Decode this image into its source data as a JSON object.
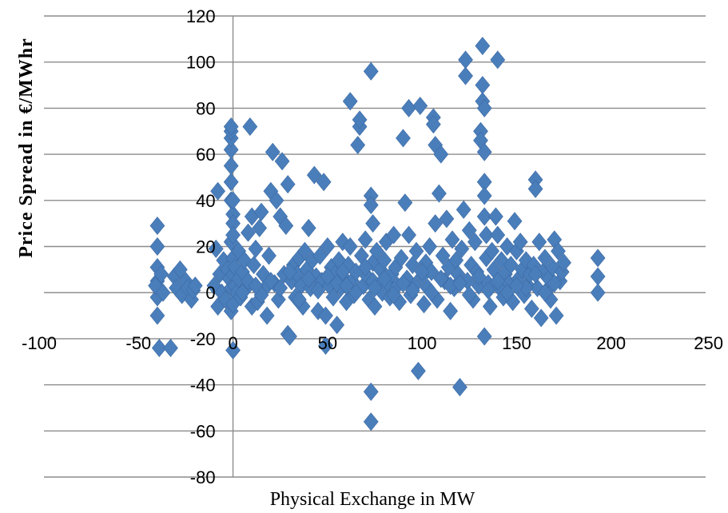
{
  "chart_data": {
    "type": "scatter",
    "title": "",
    "xlabel": "Physical Exchange in MW",
    "ylabel": "Price Spread in €/MWhr",
    "xlim": [
      -100,
      250
    ],
    "ylim": [
      -80,
      120
    ],
    "x_ticks": [
      -100,
      -50,
      0,
      50,
      100,
      150,
      200,
      250
    ],
    "y_ticks": [
      -80,
      -60,
      -40,
      -20,
      0,
      20,
      40,
      60,
      80,
      100,
      120
    ],
    "grid": "horizontal",
    "legend": "none",
    "marker_color": "#4a7ebb",
    "marker": "diamond",
    "series": [
      {
        "points": [
          [
            -40,
            29
          ],
          [
            -40,
            20
          ],
          [
            -40,
            11
          ],
          [
            -40,
            5
          ],
          [
            -40,
            -2
          ],
          [
            -40,
            -10
          ],
          [
            -39,
            -24
          ],
          [
            -41,
            3
          ],
          [
            -38,
            8
          ],
          [
            -37,
            0
          ],
          [
            -33,
            -24
          ],
          [
            -31,
            7
          ],
          [
            -30,
            2
          ],
          [
            -28,
            10
          ],
          [
            -27,
            -1
          ],
          [
            -25,
            5
          ],
          [
            -24,
            2
          ],
          [
            -22,
            -3
          ],
          [
            -21,
            1
          ],
          [
            -20,
            3
          ],
          [
            -10,
            3
          ],
          [
            -9,
            19
          ],
          [
            -8,
            44
          ],
          [
            -8,
            -6
          ],
          [
            -7,
            8
          ],
          [
            -6,
            0
          ],
          [
            -5,
            14
          ],
          [
            -4,
            -3
          ],
          [
            -3,
            10
          ],
          [
            -2,
            6
          ],
          [
            -1,
            -8
          ],
          [
            -1,
            2
          ],
          [
            -1,
            22
          ],
          [
            -1,
            40
          ],
          [
            -1,
            48
          ],
          [
            -1,
            55
          ],
          [
            -1,
            62
          ],
          [
            -1,
            67
          ],
          [
            -1,
            70
          ],
          [
            -1,
            72
          ],
          [
            0,
            -25
          ],
          [
            0,
            34
          ],
          [
            0,
            40
          ],
          [
            0,
            30
          ],
          [
            0,
            25
          ],
          [
            0,
            15
          ],
          [
            0,
            8
          ],
          [
            0,
            -5
          ],
          [
            1,
            3
          ],
          [
            1,
            11
          ],
          [
            2,
            0
          ],
          [
            3,
            18
          ],
          [
            3,
            6
          ],
          [
            4,
            -2
          ],
          [
            5,
            9
          ],
          [
            6,
            14
          ],
          [
            7,
            2
          ],
          [
            8,
            26
          ],
          [
            8,
            5
          ],
          [
            9,
            72
          ],
          [
            10,
            -6
          ],
          [
            10,
            33
          ],
          [
            11,
            12
          ],
          [
            12,
            19
          ],
          [
            13,
            -4
          ],
          [
            14,
            28
          ],
          [
            15,
            35
          ],
          [
            16,
            8
          ],
          [
            17,
            2
          ],
          [
            18,
            -10
          ],
          [
            19,
            16
          ],
          [
            20,
            44
          ],
          [
            21,
            61
          ],
          [
            22,
            4
          ],
          [
            23,
            40
          ],
          [
            24,
            -3
          ],
          [
            25,
            33
          ],
          [
            26,
            57
          ],
          [
            27,
            8
          ],
          [
            28,
            29
          ],
          [
            29,
            47
          ],
          [
            29,
            -18
          ],
          [
            30,
            -19
          ],
          [
            31,
            5
          ],
          [
            32,
            12
          ],
          [
            33,
            -2
          ],
          [
            34,
            8
          ],
          [
            35,
            15
          ],
          [
            36,
            3
          ],
          [
            37,
            -6
          ],
          [
            38,
            18
          ],
          [
            39,
            10
          ],
          [
            40,
            28
          ],
          [
            41,
            2
          ],
          [
            42,
            14
          ],
          [
            43,
            51
          ],
          [
            44,
            7
          ],
          [
            45,
            -8
          ],
          [
            46,
            16
          ],
          [
            47,
            5
          ],
          [
            48,
            48
          ],
          [
            49,
            -10
          ],
          [
            49,
            -23
          ],
          [
            50,
            20
          ],
          [
            51,
            3
          ],
          [
            52,
            11
          ],
          [
            53,
            -2
          ],
          [
            54,
            8
          ],
          [
            55,
            -14
          ],
          [
            56,
            14
          ],
          [
            57,
            2
          ],
          [
            58,
            22
          ],
          [
            59,
            6
          ],
          [
            60,
            -4
          ],
          [
            61,
            12
          ],
          [
            62,
            83
          ],
          [
            62,
            20
          ],
          [
            63,
            5
          ],
          [
            64,
            -1
          ],
          [
            65,
            9
          ],
          [
            66,
            64
          ],
          [
            67,
            72
          ],
          [
            67,
            75
          ],
          [
            68,
            16
          ],
          [
            69,
            3
          ],
          [
            70,
            23
          ],
          [
            71,
            7
          ],
          [
            72,
            -3
          ],
          [
            73,
            96
          ],
          [
            73,
            42
          ],
          [
            73,
            -43
          ],
          [
            73,
            -56
          ],
          [
            73,
            38
          ],
          [
            74,
            30
          ],
          [
            74,
            13
          ],
          [
            74,
            5
          ],
          [
            75,
            -6
          ],
          [
            76,
            18
          ],
          [
            77,
            2
          ],
          [
            78,
            10
          ],
          [
            79,
            0
          ],
          [
            80,
            14
          ],
          [
            81,
            22
          ],
          [
            82,
            4
          ],
          [
            83,
            -2
          ],
          [
            84,
            8
          ],
          [
            85,
            25
          ],
          [
            86,
            11
          ],
          [
            87,
            3
          ],
          [
            88,
            -4
          ],
          [
            89,
            15
          ],
          [
            90,
            67
          ],
          [
            91,
            39
          ],
          [
            92,
            6
          ],
          [
            93,
            25
          ],
          [
            93,
            80
          ],
          [
            94,
            -1
          ],
          [
            95,
            12
          ],
          [
            96,
            3
          ],
          [
            97,
            18
          ],
          [
            98,
            -34
          ],
          [
            99,
            81
          ],
          [
            100,
            7
          ],
          [
            101,
            -5
          ],
          [
            102,
            13
          ],
          [
            103,
            2
          ],
          [
            104,
            20
          ],
          [
            105,
            9
          ],
          [
            106,
            76
          ],
          [
            106,
            73
          ],
          [
            107,
            64
          ],
          [
            107,
            30
          ],
          [
            108,
            -3
          ],
          [
            109,
            43
          ],
          [
            110,
            60
          ],
          [
            111,
            16
          ],
          [
            112,
            5
          ],
          [
            113,
            32
          ],
          [
            114,
            11
          ],
          [
            115,
            -8
          ],
          [
            116,
            23
          ],
          [
            117,
            2
          ],
          [
            118,
            14
          ],
          [
            119,
            8
          ],
          [
            120,
            -41
          ],
          [
            121,
            19
          ],
          [
            122,
            36
          ],
          [
            123,
            101
          ],
          [
            123,
            94
          ],
          [
            124,
            5
          ],
          [
            125,
            27
          ],
          [
            126,
            12
          ],
          [
            127,
            -3
          ],
          [
            128,
            22
          ],
          [
            129,
            9
          ],
          [
            130,
            3
          ],
          [
            131,
            70
          ],
          [
            131,
            66
          ],
          [
            132,
            107
          ],
          [
            132,
            83
          ],
          [
            132,
            90
          ],
          [
            133,
            80
          ],
          [
            133,
            61
          ],
          [
            133,
            48
          ],
          [
            133,
            42
          ],
          [
            133,
            33
          ],
          [
            133,
            -19
          ],
          [
            134,
            25
          ],
          [
            134,
            15
          ],
          [
            135,
            4
          ],
          [
            136,
            -6
          ],
          [
            137,
            18
          ],
          [
            138,
            10
          ],
          [
            139,
            33
          ],
          [
            140,
            101
          ],
          [
            140,
            25
          ],
          [
            141,
            2
          ],
          [
            142,
            14
          ],
          [
            143,
            -2
          ],
          [
            144,
            8
          ],
          [
            145,
            20
          ],
          [
            146,
            4
          ],
          [
            147,
            12
          ],
          [
            148,
            -4
          ],
          [
            149,
            31
          ],
          [
            150,
            18
          ],
          [
            151,
            6
          ],
          [
            152,
            22
          ],
          [
            153,
            10
          ],
          [
            154,
            -1
          ],
          [
            155,
            14
          ],
          [
            156,
            3
          ],
          [
            157,
            8
          ],
          [
            158,
            -7
          ],
          [
            159,
            12
          ],
          [
            160,
            49
          ],
          [
            160,
            45
          ],
          [
            161,
            2
          ],
          [
            162,
            22
          ],
          [
            163,
            -11
          ],
          [
            164,
            9
          ],
          [
            165,
            15
          ],
          [
            166,
            1
          ],
          [
            167,
            6
          ],
          [
            168,
            -3
          ],
          [
            169,
            11
          ],
          [
            170,
            23
          ],
          [
            171,
            -10
          ],
          [
            172,
            18
          ],
          [
            173,
            5
          ],
          [
            174,
            9
          ],
          [
            175,
            13
          ],
          [
            193,
            15
          ],
          [
            193,
            7
          ],
          [
            193,
            0
          ],
          [
            5,
            0
          ],
          [
            15,
            -1
          ],
          [
            25,
            2
          ],
          [
            35,
            -3
          ],
          [
            45,
            1
          ],
          [
            55,
            4
          ],
          [
            65,
            0
          ],
          [
            75,
            2
          ],
          [
            85,
            -1
          ],
          [
            95,
            1
          ],
          [
            105,
            0
          ],
          [
            115,
            3
          ],
          [
            125,
            -1
          ],
          [
            135,
            1
          ],
          [
            145,
            0
          ],
          [
            155,
            2
          ],
          [
            165,
            0
          ],
          [
            20,
            5
          ],
          [
            30,
            9
          ],
          [
            40,
            6
          ],
          [
            50,
            7
          ],
          [
            60,
            3
          ],
          [
            70,
            11
          ],
          [
            80,
            6
          ],
          [
            90,
            4
          ],
          [
            100,
            9
          ],
          [
            110,
            6
          ],
          [
            120,
            4
          ],
          [
            130,
            7
          ],
          [
            140,
            5
          ],
          [
            150,
            3
          ],
          [
            160,
            8
          ],
          [
            170,
            4
          ],
          [
            12,
            3
          ],
          [
            58,
            9
          ]
        ]
      }
    ]
  }
}
